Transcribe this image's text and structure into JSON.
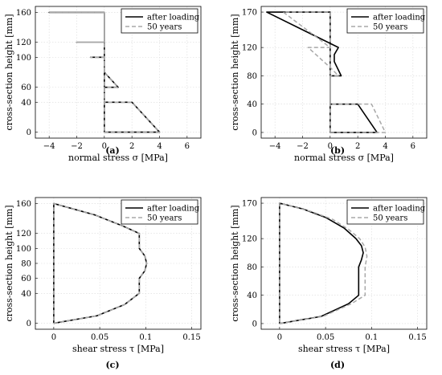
{
  "chart_data": [
    {
      "id": "a",
      "type": "line",
      "panel_label": "(a)",
      "xlabel": "normal stress σ [MPa]",
      "ylabel": "cross-section height [mm]",
      "xlim": [
        -5,
        7
      ],
      "ylim": [
        -8,
        168
      ],
      "xticks": [
        -4,
        -2,
        0,
        2,
        4,
        6
      ],
      "yticks": [
        0,
        40,
        60,
        100,
        120,
        160
      ],
      "xtick_labels": [
        "−4",
        "−2",
        "0",
        "2",
        "4",
        "6"
      ],
      "ytick_labels": [
        "0",
        "40",
        "60",
        "100",
        "120",
        "160"
      ],
      "grid": true,
      "legend": "top-right",
      "series": [
        {
          "name": "after loading",
          "style": "solid",
          "color": "#000000",
          "x": [
            0,
            4,
            2,
            0,
            0,
            1,
            0,
            0,
            -1,
            0,
            0,
            -2,
            0,
            0,
            -4,
            0,
            0
          ],
          "y": [
            0,
            0,
            40,
            40,
            60,
            60,
            80,
            100,
            100,
            100,
            120,
            120,
            120,
            160,
            160,
            160,
            0
          ]
        },
        {
          "name": "50 years",
          "style": "dashed",
          "color": "#a8a8a8",
          "x": [
            0,
            4,
            2,
            0,
            0,
            1,
            0,
            0,
            -1,
            0,
            0,
            -2,
            0,
            0,
            -4,
            0,
            0
          ],
          "y": [
            0,
            0,
            40,
            40,
            60,
            60,
            80,
            100,
            100,
            100,
            120,
            120,
            120,
            160,
            160,
            160,
            0
          ]
        }
      ]
    },
    {
      "id": "b",
      "type": "line",
      "panel_label": "(b)",
      "xlabel": "normal stress σ [MPa]",
      "ylabel": "cross-section height [mm]",
      "xlim": [
        -5,
        7
      ],
      "ylim": [
        -8,
        178
      ],
      "xticks": [
        -4,
        -2,
        0,
        2,
        4,
        6
      ],
      "yticks": [
        0,
        40,
        80,
        120,
        170
      ],
      "xtick_labels": [
        "−4",
        "−2",
        "0",
        "2",
        "4",
        "6"
      ],
      "ytick_labels": [
        "0",
        "40",
        "80",
        "120",
        "170"
      ],
      "grid": true,
      "legend": "top-right",
      "series": [
        {
          "name": "after loading",
          "style": "solid",
          "color": "#000000",
          "x": [
            0,
            3.4,
            2,
            0,
            0,
            0.8,
            0.3,
            0.3,
            0.6,
            -4.6,
            0,
            0
          ],
          "y": [
            0,
            0,
            40,
            40,
            80,
            80,
            100,
            110,
            120,
            170,
            170,
            0
          ]
        },
        {
          "name": "50 years",
          "style": "dashed",
          "color": "#a8a8a8",
          "x": [
            0,
            4,
            3,
            2.5,
            0,
            0,
            0.6,
            0.1,
            -1.6,
            -0.5,
            0,
            -3.4,
            0,
            0
          ],
          "y": [
            0,
            0,
            40,
            40,
            40,
            80,
            80,
            90,
            120,
            120,
            120,
            170,
            170,
            0
          ]
        }
      ]
    },
    {
      "id": "c",
      "type": "line",
      "panel_label": "(c)",
      "xlabel": "shear stress τ [MPa]",
      "ylabel": "cross-section height [mm]",
      "xlim": [
        -0.02,
        0.16
      ],
      "ylim": [
        -8,
        168
      ],
      "xticks": [
        0,
        0.05,
        0.1,
        0.15
      ],
      "yticks": [
        0,
        40,
        60,
        80,
        100,
        120,
        160
      ],
      "xtick_labels": [
        "0",
        "0.05",
        "0.1",
        "0.15"
      ],
      "ytick_labels": [
        "0",
        "40",
        "60",
        "80",
        "100",
        "120",
        "160"
      ],
      "grid": true,
      "legend": "top-right",
      "series": [
        {
          "name": "after loading",
          "style": "solid",
          "color": "#000000",
          "x": [
            0,
            0.047,
            0.077,
            0.093,
            0.093,
            0.099,
            0.101,
            0.099,
            0.093,
            0.093,
            0.075,
            0.044,
            0,
            0
          ],
          "y": [
            0,
            10,
            25,
            40,
            60,
            70,
            80,
            90,
            100,
            120,
            130,
            145,
            160,
            0
          ]
        },
        {
          "name": "50 years",
          "style": "dashed",
          "color": "#a8a8a8",
          "x": [
            0,
            0.047,
            0.077,
            0.093,
            0.093,
            0.099,
            0.101,
            0.099,
            0.093,
            0.093,
            0.075,
            0.044,
            0,
            0
          ],
          "y": [
            0,
            10,
            25,
            40,
            60,
            70,
            80,
            90,
            100,
            120,
            130,
            145,
            160,
            0
          ]
        }
      ]
    },
    {
      "id": "d",
      "type": "line",
      "panel_label": "(d)",
      "xlabel": "shear stress τ [MPa]",
      "ylabel": "cross-section height [mm]",
      "xlim": [
        -0.02,
        0.16
      ],
      "ylim": [
        -8,
        178
      ],
      "xticks": [
        0,
        0.05,
        0.1,
        0.15
      ],
      "yticks": [
        0,
        40,
        80,
        120,
        170
      ],
      "xtick_labels": [
        "0",
        "0.05",
        "0.1",
        "0.15"
      ],
      "ytick_labels": [
        "0",
        "40",
        "80",
        "120",
        "170"
      ],
      "grid": true,
      "legend": "top-right",
      "series": [
        {
          "name": "after loading",
          "style": "solid",
          "color": "#000000",
          "x": [
            0,
            0.045,
            0.075,
            0.086,
            0.086,
            0.089,
            0.091,
            0.089,
            0.083,
            0.07,
            0.05,
            0.025,
            0,
            0
          ],
          "y": [
            0,
            10,
            28,
            40,
            80,
            90,
            100,
            110,
            120,
            135,
            150,
            162,
            170,
            0
          ]
        },
        {
          "name": "50 years",
          "style": "dashed",
          "color": "#a8a8a8",
          "x": [
            0,
            0.047,
            0.078,
            0.093,
            0.093,
            0.095,
            0.093,
            0.087,
            0.075,
            0.058,
            0.035,
            0.015,
            0,
            0
          ],
          "y": [
            0,
            10,
            28,
            40,
            80,
            95,
            108,
            120,
            133,
            147,
            158,
            165,
            170,
            0
          ]
        }
      ]
    }
  ]
}
